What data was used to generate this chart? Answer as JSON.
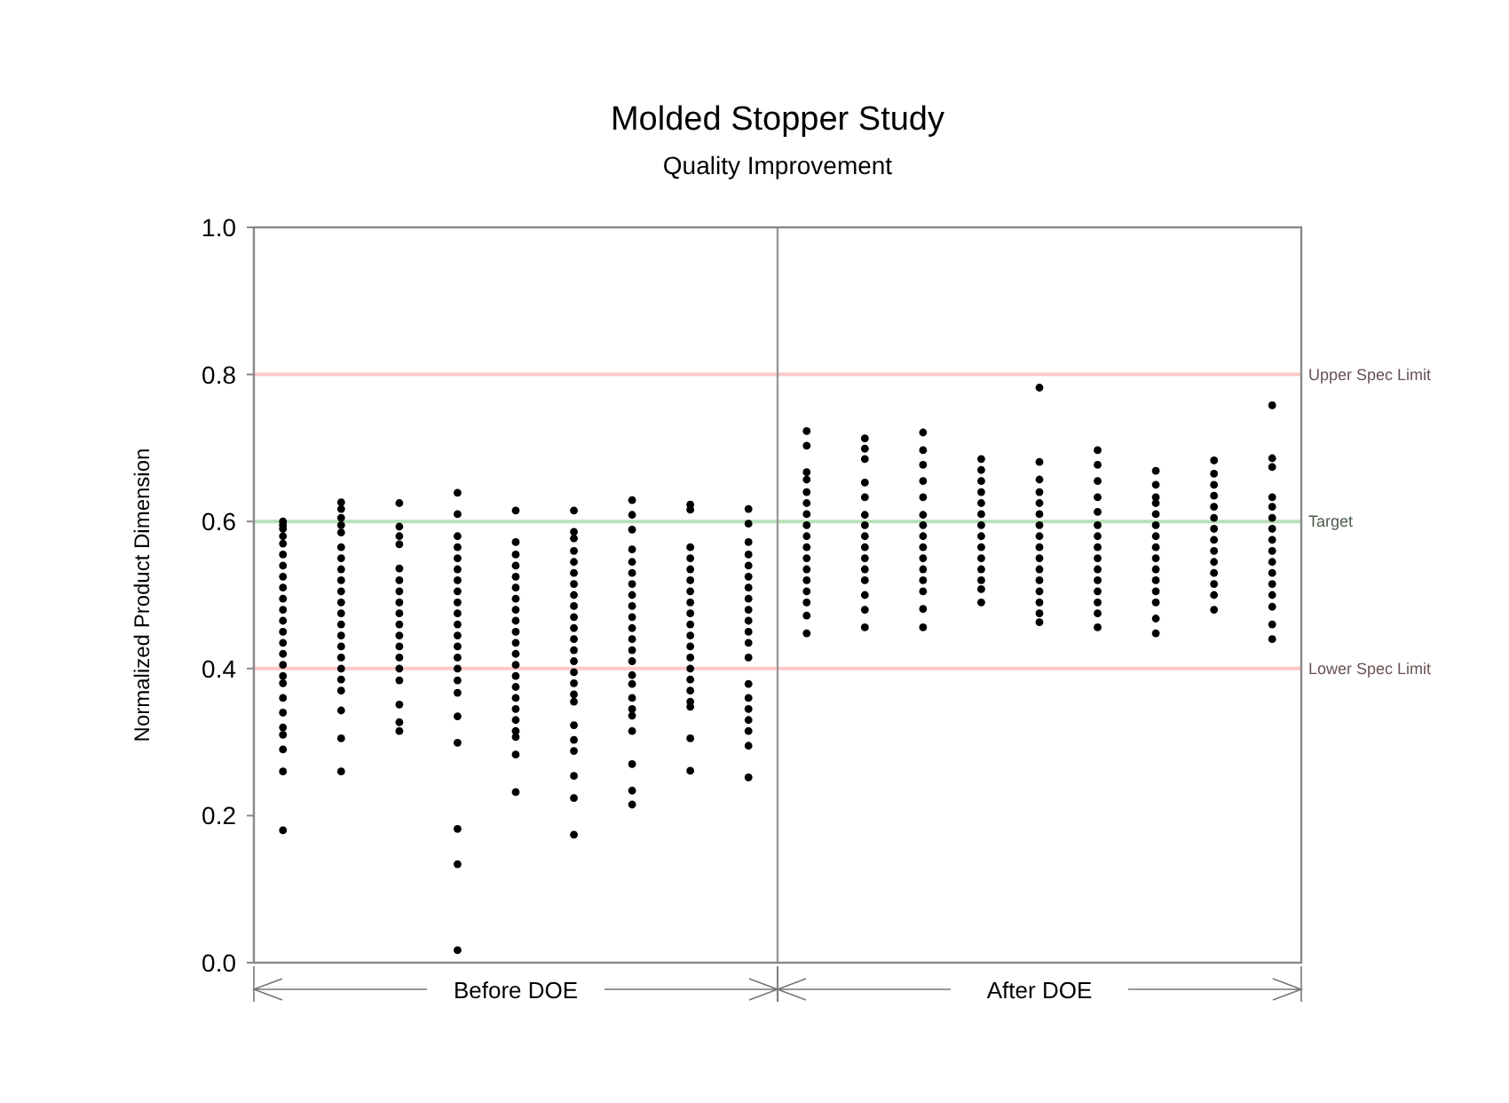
{
  "chart_data": {
    "type": "scatter",
    "title": "Molded Stopper Study",
    "subtitle": "Quality Improvement",
    "ylabel": "Normalized Product Dimension",
    "annotations": [
      "Before DOE",
      "After DOE"
    ],
    "categories": [
      null,
      null,
      null,
      null,
      null,
      null,
      null,
      null,
      null,
      null,
      null,
      null,
      null,
      null,
      null,
      null,
      null,
      null
    ],
    "ylim": [
      0,
      1
    ],
    "yticks": [
      {
        "value": 0,
        "label": "0.0"
      },
      {
        "value": 0.2,
        "label": "0.2"
      },
      {
        "value": 0.4,
        "label": "0.4"
      },
      {
        "value": 0.6,
        "label": "0.6"
      },
      {
        "value": 0.8,
        "label": "0.8"
      },
      {
        "value": 1,
        "label": "1.0"
      }
    ],
    "tick_labels": "y",
    "grid": false,
    "marker": "circle",
    "ref_lines": [
      {
        "axis": "y",
        "value": 0.8,
        "label": "Upper Spec Limit",
        "color": "#ffc8c8"
      },
      {
        "axis": "y",
        "value": 0.6,
        "label": "Target",
        "color": "#b8e2b8"
      },
      {
        "axis": "y",
        "value": 0.4,
        "label": "Lower Spec Limit",
        "color": "#ffc8c8"
      }
    ],
    "series": [
      {
        "color": "#000000",
        "values": [
          0.6,
          0.626,
          0.625,
          0.639,
          0.615,
          0.615,
          0.629,
          0.623,
          0.617,
          0.723,
          0.713,
          0.721,
          0.685,
          0.782,
          0.697,
          0.669,
          0.683,
          0.758
        ]
      },
      {
        "color": "#000000",
        "values": [
          0.595,
          0.617,
          0.593,
          0.61,
          0.572,
          0.586,
          0.609,
          0.616,
          0.597,
          0.703,
          0.699,
          0.697,
          0.67,
          0.681,
          0.677,
          0.65,
          0.665,
          0.686
        ]
      },
      {
        "color": "#000000",
        "values": [
          0.59,
          0.605,
          0.58,
          0.58,
          0.555,
          0.577,
          0.589,
          0.565,
          0.572,
          0.667,
          0.685,
          0.677,
          0.655,
          0.657,
          0.655,
          0.633,
          0.65,
          0.674
        ]
      },
      {
        "color": "#000000",
        "values": [
          0.58,
          0.595,
          0.569,
          0.565,
          0.54,
          0.56,
          0.562,
          0.55,
          0.555,
          0.657,
          0.653,
          0.655,
          0.64,
          0.64,
          0.633,
          0.625,
          0.635,
          0.633
        ]
      },
      {
        "color": "#000000",
        "values": [
          0.57,
          0.585,
          0.536,
          0.55,
          0.525,
          0.545,
          0.545,
          0.535,
          0.54,
          0.64,
          0.633,
          0.633,
          0.625,
          0.625,
          0.613,
          0.61,
          0.62,
          0.62
        ]
      },
      {
        "color": "#000000",
        "values": [
          0.555,
          0.565,
          0.52,
          0.535,
          0.51,
          0.53,
          0.53,
          0.52,
          0.525,
          0.625,
          0.609,
          0.609,
          0.61,
          0.61,
          0.595,
          0.595,
          0.605,
          0.605
        ]
      },
      {
        "color": "#000000",
        "values": [
          0.54,
          0.55,
          0.505,
          0.52,
          0.495,
          0.515,
          0.515,
          0.505,
          0.51,
          0.61,
          0.595,
          0.595,
          0.595,
          0.595,
          0.58,
          0.58,
          0.59,
          0.59
        ]
      },
      {
        "color": "#000000",
        "values": [
          0.525,
          0.535,
          0.49,
          0.505,
          0.48,
          0.5,
          0.5,
          0.49,
          0.495,
          0.595,
          0.58,
          0.58,
          0.58,
          0.58,
          0.565,
          0.565,
          0.575,
          0.575
        ]
      },
      {
        "color": "#000000",
        "values": [
          0.51,
          0.52,
          0.475,
          0.49,
          0.465,
          0.485,
          0.485,
          0.475,
          0.48,
          0.58,
          0.565,
          0.565,
          0.565,
          0.565,
          0.55,
          0.55,
          0.56,
          0.56
        ]
      },
      {
        "color": "#000000",
        "values": [
          0.495,
          0.505,
          0.46,
          0.475,
          0.45,
          0.47,
          0.47,
          0.46,
          0.465,
          0.565,
          0.55,
          0.55,
          0.55,
          0.55,
          0.535,
          0.535,
          0.545,
          0.545
        ]
      },
      {
        "color": "#000000",
        "values": [
          0.48,
          0.49,
          0.445,
          0.46,
          0.435,
          0.455,
          0.455,
          0.445,
          0.45,
          0.55,
          0.535,
          0.535,
          0.535,
          0.535,
          0.52,
          0.52,
          0.53,
          0.53
        ]
      },
      {
        "color": "#000000",
        "values": [
          0.465,
          0.475,
          0.43,
          0.445,
          0.42,
          0.44,
          0.44,
          0.43,
          0.435,
          0.535,
          0.52,
          0.52,
          0.52,
          0.52,
          0.505,
          0.505,
          0.515,
          0.515
        ]
      },
      {
        "color": "#000000",
        "values": [
          0.45,
          0.46,
          0.415,
          0.43,
          0.405,
          0.425,
          0.425,
          0.415,
          0.415,
          0.52,
          0.5,
          0.505,
          0.508,
          0.505,
          0.49,
          0.49,
          0.5,
          0.5
        ]
      },
      {
        "color": "#000000",
        "values": [
          0.435,
          0.445,
          0.4,
          0.415,
          0.39,
          0.41,
          0.41,
          0.4,
          0.379,
          0.505,
          0.48,
          0.481,
          0.49,
          0.49,
          0.475,
          0.468,
          0.48,
          0.484
        ]
      },
      {
        "color": "#000000",
        "values": [
          0.42,
          0.43,
          0.384,
          0.4,
          0.375,
          0.395,
          0.391,
          0.385,
          0.36,
          0.49,
          0.456,
          0.456,
          null,
          0.475,
          0.456,
          0.448,
          null,
          0.46
        ]
      },
      {
        "color": "#000000",
        "values": [
          0.405,
          0.415,
          0.351,
          0.384,
          0.36,
          0.38,
          0.379,
          0.37,
          0.345,
          0.472,
          null,
          null,
          null,
          0.463,
          null,
          null,
          null,
          0.44
        ]
      },
      {
        "color": "#000000",
        "values": [
          0.39,
          0.4,
          0.327,
          0.367,
          0.345,
          0.365,
          0.36,
          0.355,
          0.33,
          0.448,
          null,
          null,
          null,
          null,
          null,
          null,
          null,
          null
        ]
      },
      {
        "color": "#000000",
        "values": [
          0.38,
          0.385,
          0.315,
          0.335,
          0.33,
          0.355,
          0.345,
          0.348,
          0.315,
          null,
          null,
          null,
          null,
          null,
          null,
          null,
          null,
          null
        ]
      },
      {
        "color": "#000000",
        "values": [
          0.36,
          0.37,
          null,
          0.299,
          0.315,
          0.323,
          0.336,
          0.305,
          0.295,
          null,
          null,
          null,
          null,
          null,
          null,
          null,
          null,
          null
        ]
      },
      {
        "color": "#000000",
        "values": [
          0.34,
          0.343,
          null,
          0.182,
          0.307,
          0.303,
          0.315,
          0.261,
          0.252,
          null,
          null,
          null,
          null,
          null,
          null,
          null,
          null,
          null
        ]
      },
      {
        "color": "#000000",
        "values": [
          0.32,
          0.305,
          null,
          0.134,
          0.283,
          0.288,
          0.27,
          null,
          null,
          null,
          null,
          null,
          null,
          null,
          null,
          null,
          null,
          null
        ]
      },
      {
        "color": "#000000",
        "values": [
          0.31,
          0.26,
          null,
          0.017,
          0.232,
          0.254,
          0.234,
          null,
          null,
          null,
          null,
          null,
          null,
          null,
          null,
          null,
          null,
          null
        ]
      },
      {
        "color": "#000000",
        "values": [
          0.29,
          null,
          null,
          null,
          null,
          0.224,
          0.215,
          null,
          null,
          null,
          null,
          null,
          null,
          null,
          null,
          null,
          null,
          null
        ]
      },
      {
        "color": "#000000",
        "values": [
          0.26,
          null,
          null,
          null,
          null,
          0.174,
          null,
          null,
          null,
          null,
          null,
          null,
          null,
          null,
          null,
          null,
          null,
          null
        ]
      },
      {
        "color": "#000000",
        "values": [
          0.18,
          null,
          null,
          null,
          null,
          null,
          null,
          null,
          null,
          null,
          null,
          null,
          null,
          null,
          null,
          null,
          null,
          null
        ]
      }
    ]
  }
}
